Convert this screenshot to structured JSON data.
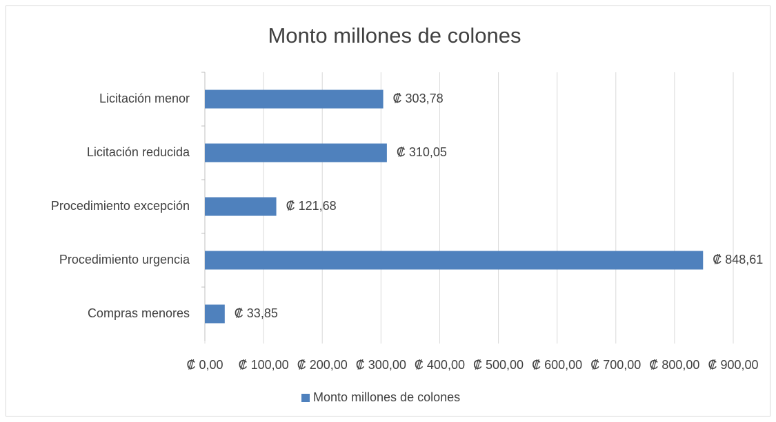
{
  "chart_data": {
    "type": "bar",
    "orientation": "horizontal",
    "title": "Monto millones de colones",
    "categories": [
      "Licitación menor",
      "Licitación reducida",
      "Procedimiento excepción",
      "Procedimiento urgencia",
      "Compras menores"
    ],
    "series": [
      {
        "name": "Monto millones de colones",
        "color": "#4f81bd",
        "values": [
          303.78,
          310.05,
          121.68,
          848.61,
          33.85
        ],
        "value_labels": [
          "₡ 303,78",
          "₡ 310,05",
          "₡ 121,68",
          "₡ 848,61",
          "₡ 33,85"
        ]
      }
    ],
    "xlim": [
      0,
      900
    ],
    "xticks": [
      {
        "value": 0,
        "label": "₡ 0,00"
      },
      {
        "value": 100,
        "label": "₡ 100,00"
      },
      {
        "value": 200,
        "label": "₡ 200,00"
      },
      {
        "value": 300,
        "label": "₡ 300,00"
      },
      {
        "value": 400,
        "label": "₡ 400,00"
      },
      {
        "value": 500,
        "label": "₡ 500,00"
      },
      {
        "value": 600,
        "label": "₡ 600,00"
      },
      {
        "value": 700,
        "label": "₡ 700,00"
      },
      {
        "value": 800,
        "label": "₡ 800,00"
      },
      {
        "value": 900,
        "label": "₡ 900,00"
      }
    ],
    "grid": true,
    "legend": "bottom"
  }
}
